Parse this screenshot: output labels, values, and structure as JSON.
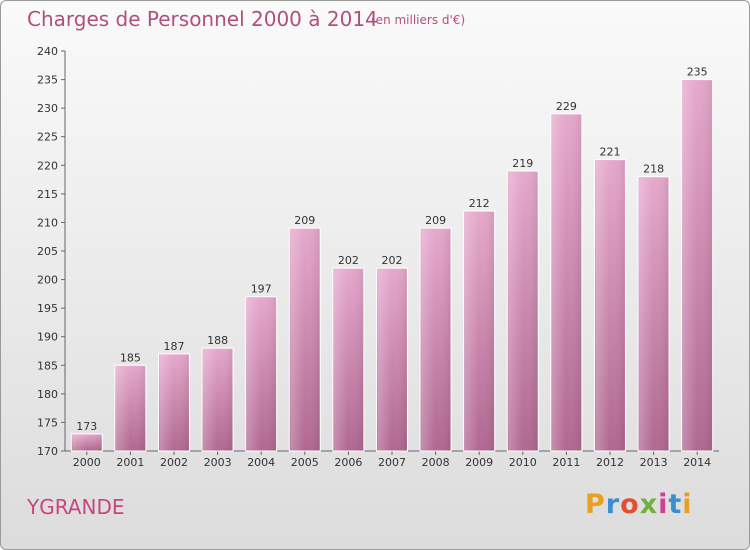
{
  "header": {
    "title": "Charges de Personnel 2000 à 2014",
    "unit": "(en milliers d'€)"
  },
  "footer": {
    "commune": "YGRANDE",
    "logo": "Proxiti",
    "logo_colors": [
      "#e8a020",
      "#3a8fd0",
      "#e05030",
      "#70b040",
      "#d04090",
      "#3a8fd0",
      "#e8a020"
    ]
  },
  "chart_data": {
    "type": "bar",
    "title": "Charges de Personnel 2000 à 2014",
    "subtitle": "(en milliers d'€)",
    "categories": [
      "2000",
      "2001",
      "2002",
      "2003",
      "2004",
      "2005",
      "2006",
      "2007",
      "2008",
      "2009",
      "2010",
      "2011",
      "2012",
      "2013",
      "2014"
    ],
    "values": [
      173,
      185,
      187,
      188,
      197,
      209,
      202,
      202,
      209,
      212,
      219,
      229,
      221,
      218,
      235
    ],
    "ylim": [
      170,
      240
    ],
    "yticks": [
      170,
      175,
      180,
      185,
      190,
      195,
      200,
      205,
      210,
      215,
      220,
      225,
      230,
      235,
      240
    ],
    "grid": false,
    "bar_color": "#cc6fa0",
    "data_labels": true
  }
}
